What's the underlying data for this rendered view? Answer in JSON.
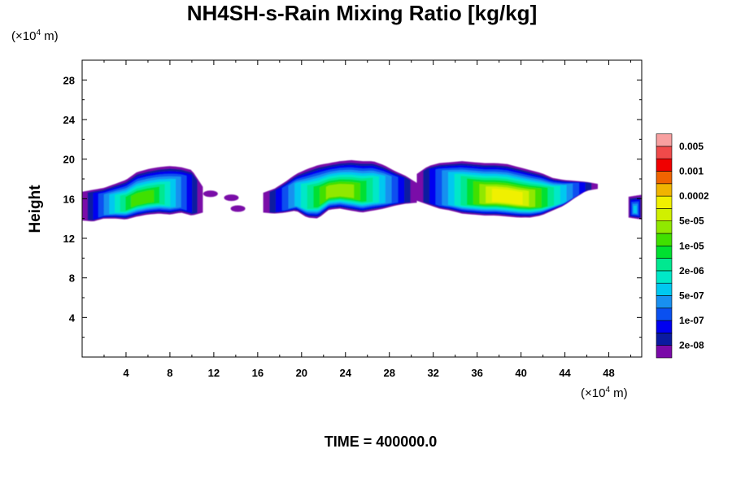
{
  "chart_data": {
    "type": "heatmap",
    "title": "NH4SH-s-Rain Mixing Ratio [kg/kg]",
    "xlabel": "",
    "xunit_prefix": "(×10",
    "xunit_exp": "4",
    "xunit_suffix": " m)",
    "ylabel": "Height",
    "yunit_prefix": "(×10",
    "yunit_exp": "4",
    "yunit_suffix": " m)",
    "xlim": [
      0,
      51
    ],
    "ylim": [
      0,
      30
    ],
    "xticks": [
      4,
      8,
      12,
      16,
      20,
      24,
      28,
      32,
      36,
      40,
      44,
      48
    ],
    "yticks": [
      4,
      8,
      12,
      16,
      20,
      24,
      28
    ],
    "time_label": "TIME = 400000.0",
    "colorbar": {
      "colors": [
        "#7a0aa8",
        "#0a1aa0",
        "#0000f0",
        "#0a50f0",
        "#1890f0",
        "#00c8f0",
        "#00e8c8",
        "#00e890",
        "#00e030",
        "#40e000",
        "#90e800",
        "#d0f000",
        "#f0f000",
        "#f0b400",
        "#f06400",
        "#f00000",
        "#f04a4a",
        "#f8a0a0"
      ],
      "labels": [
        {
          "text": "2e-08",
          "index": 1
        },
        {
          "text": "1e-07",
          "index": 3
        },
        {
          "text": "5e-07",
          "index": 5
        },
        {
          "text": "2e-06",
          "index": 7
        },
        {
          "text": "1e-05",
          "index": 9
        },
        {
          "text": "5e-05",
          "index": 11
        },
        {
          "text": "0.0002",
          "index": 13
        },
        {
          "text": "0.001",
          "index": 15
        },
        {
          "text": "0.005",
          "index": 17
        }
      ]
    },
    "cloud_bands": [
      {
        "x": [
          0,
          11
        ],
        "ybottom": [
          13.8,
          13.7,
          14,
          14,
          13.9,
          14.2,
          14.4,
          14.5,
          14.4,
          14.6,
          14.3,
          14.6
        ],
        "ytop": [
          16.7,
          16.9,
          17.1,
          17.5,
          17.9,
          18.7,
          19,
          19.2,
          19.3,
          19.2,
          18.9,
          17.2
        ]
      },
      {
        "x": [
          16.5,
          30.5
        ],
        "ybottom": [
          14.6,
          14.5,
          14.6,
          14.8,
          14.1,
          14,
          14.9,
          15,
          14.8,
          14.6,
          14.8,
          15,
          15.3,
          15.5,
          15.6
        ],
        "ytop": [
          16.6,
          17,
          17.7,
          18.5,
          19,
          19.4,
          19.6,
          19.8,
          19.9,
          19.8,
          19.8,
          19.4,
          18.8,
          18.3,
          17.6
        ]
      },
      {
        "x": [
          30.5,
          47
        ],
        "ybottom": [
          15.8,
          15.4,
          15,
          14.8,
          14.5,
          14.4,
          14.3,
          14.3,
          14.2,
          14.1,
          14.1,
          14.3,
          14.8,
          15.3,
          16.1,
          16.8,
          17
        ],
        "ytop": [
          18.5,
          19.3,
          19.6,
          19.7,
          19.8,
          19.7,
          19.6,
          19.6,
          19.5,
          19.2,
          18.9,
          18.6,
          18.1,
          17.9,
          17.8,
          17.7,
          17.5
        ]
      },
      {
        "x": [
          49.8,
          51
        ],
        "ybottom": [
          14.1,
          13.9
        ],
        "ytop": [
          16.2,
          16.4
        ]
      }
    ],
    "wisps": [
      {
        "x": 11.7,
        "y": 16.5
      },
      {
        "x": 13.6,
        "y": 16.1
      },
      {
        "x": 14.2,
        "y": 15.0
      }
    ]
  }
}
